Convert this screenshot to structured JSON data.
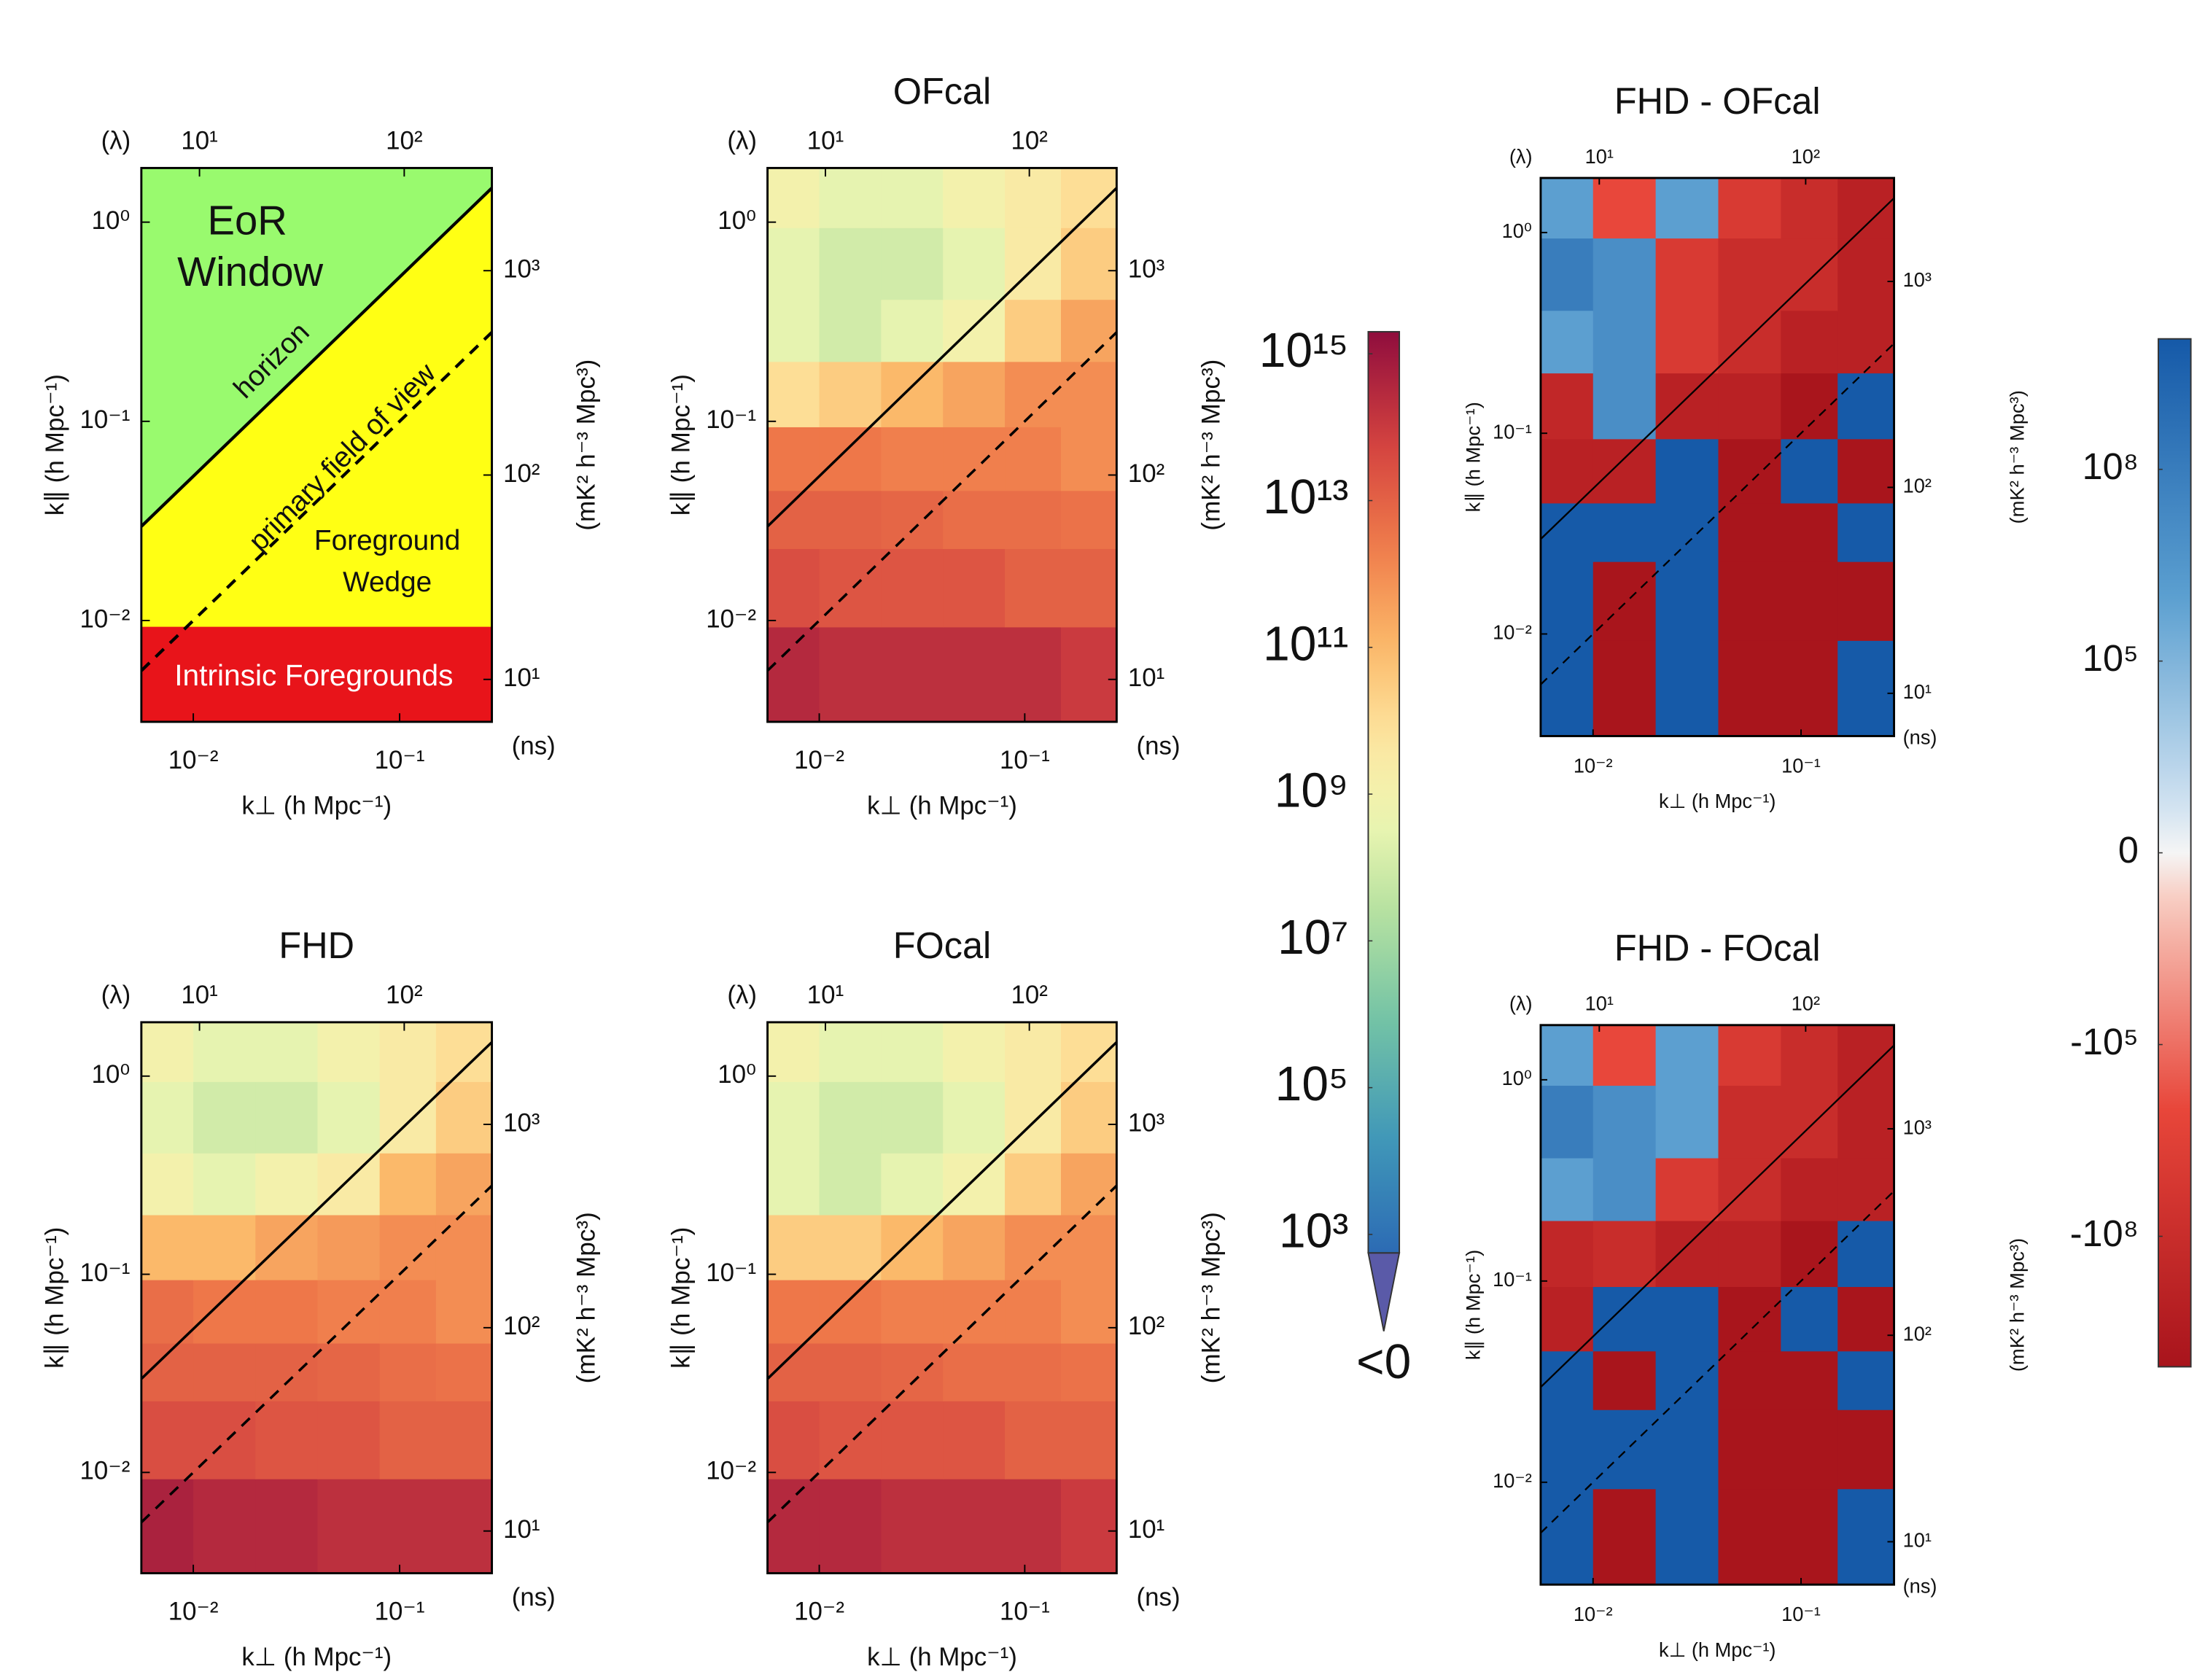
{
  "chart_data": [
    {
      "type": "schematic",
      "xlabel": "k⊥ (h Mpc⁻¹)",
      "ylabel": "k∥ (h Mpc⁻¹)",
      "x2label": "(λ)",
      "y2label": "(ns)",
      "zlabel": "(mK² h⁻³ Mpc³)",
      "xlim": [
        0.0056,
        0.28
      ],
      "ylim": [
        0.0031,
        1.87
      ],
      "x2lim": [
        5.2,
        268
      ],
      "y2lim": [
        6.2,
        3180
      ],
      "xticks": [
        {
          "value": 0.01,
          "label": "10⁻²"
        },
        {
          "value": 0.1,
          "label": "10⁻¹"
        }
      ],
      "x2ticks": [
        {
          "value": 10,
          "label": "10¹"
        },
        {
          "value": 100,
          "label": "10²"
        }
      ],
      "yticks": [
        {
          "value": 0.01,
          "label": "10⁻²"
        },
        {
          "value": 0.1,
          "label": "10⁻¹"
        },
        {
          "value": 1,
          "label": "10⁰"
        }
      ],
      "y2ticks": [
        {
          "value": 10,
          "label": "10¹"
        },
        {
          "value": 100,
          "label": "10²"
        },
        {
          "value": 1000,
          "label": "10³"
        }
      ],
      "horizon_slope": 5.3,
      "fov_slope": 1.0,
      "foreground_kpar": 0.0093,
      "colors": {
        "window": "#99fa6e",
        "wedge": "#ffff14",
        "foregrounds": "#e8141a"
      },
      "region_labels": {
        "window": [
          "EoR",
          "Window"
        ],
        "horizon": "horizon",
        "fov": "primary field of view",
        "wedge": [
          "Foreground",
          "Wedge"
        ],
        "foregrounds": "Intrinsic Foregrounds"
      }
    },
    {
      "type": "heatmap",
      "title": "OFcal",
      "colormap": "spectral",
      "xlabel": "k⊥ (h Mpc⁻¹)",
      "ylabel": "k∥ (h Mpc⁻¹)",
      "x2label": "(λ)",
      "y2label": "(ns)",
      "zlabel": "(mK² h⁻³ Mpc³)",
      "xlim": [
        0.0056,
        0.28
      ],
      "ylim": [
        0.0031,
        1.87
      ],
      "x2lim": [
        5.2,
        268
      ],
      "y2lim": [
        6.2,
        3180
      ],
      "xticks": [
        {
          "value": 0.01,
          "label": "10⁻²"
        },
        {
          "value": 0.1,
          "label": "10⁻¹"
        }
      ],
      "x2ticks": [
        {
          "value": 10,
          "label": "10¹"
        },
        {
          "value": 100,
          "label": "10²"
        }
      ],
      "yticks": [
        {
          "value": 0.01,
          "label": "10⁻²"
        },
        {
          "value": 0.1,
          "label": "10⁻¹"
        },
        {
          "value": 1,
          "label": "10⁰"
        }
      ],
      "y2ticks": [
        {
          "value": 10,
          "label": "10¹"
        },
        {
          "value": 100,
          "label": "10²"
        },
        {
          "value": 1000,
          "label": "10³"
        }
      ],
      "horizon_slope": 5.3,
      "fov_slope": 1.0,
      "x_edges": [
        0.0056,
        0.01,
        0.02,
        0.04,
        0.08,
        0.15,
        0.28
      ],
      "y_edges": [
        0.0031,
        0.0093,
        0.023,
        0.045,
        0.094,
        0.2,
        0.41,
        0.94,
        1.87
      ],
      "z": [
        [
          300000000000000.0,
          200000000000000.0,
          200000000000000.0,
          200000000000000.0,
          200000000000000.0,
          100000000000000.0
        ],
        [
          30000000000000.0,
          20000000000000.0,
          20000000000000.0,
          20000000000000.0,
          10000000000000.0,
          10000000000000.0
        ],
        [
          10000000000000.0,
          10000000000000.0,
          8000000000000.0,
          5000000000000.0,
          5000000000000.0,
          4000000000000.0
        ],
        [
          3000000000000.0,
          3000000000000.0,
          2000000000000.0,
          2000000000000.0,
          2000000000000.0,
          1000000000000.0
        ],
        [
          10000000000.0,
          30000000000.0,
          100000000000.0,
          300000000000.0,
          1000000000000.0,
          1000000000000.0
        ],
        [
          300000000.0,
          100000000.0,
          300000000.0,
          1000000000.0,
          30000000000.0,
          300000000000.0
        ],
        [
          300000000.0,
          100000000.0,
          100000000.0,
          300000000.0,
          3000000000.0,
          30000000000.0
        ],
        [
          1000000000.0,
          300000000.0,
          300000000.0,
          1000000000.0,
          3000000000.0,
          10000000000.0
        ]
      ]
    },
    {
      "type": "heatmap",
      "title": "FHD - OFcal",
      "colormap": "diverging",
      "xlabel": "k⊥ (h Mpc⁻¹)",
      "ylabel": "k∥ (h Mpc⁻¹)",
      "x2label": "(λ)",
      "y2label": "(ns)",
      "zlabel": "(mK² h⁻³ Mpc³)",
      "xlim": [
        0.0056,
        0.28
      ],
      "ylim": [
        0.0031,
        1.87
      ],
      "x2lim": [
        5.2,
        268
      ],
      "y2lim": [
        6.2,
        3180
      ],
      "xticks": [
        {
          "value": 0.01,
          "label": "10⁻²"
        },
        {
          "value": 0.1,
          "label": "10⁻¹"
        }
      ],
      "x2ticks": [
        {
          "value": 10,
          "label": "10¹"
        },
        {
          "value": 100,
          "label": "10²"
        }
      ],
      "yticks": [
        {
          "value": 0.01,
          "label": "10⁻²"
        },
        {
          "value": 0.1,
          "label": "10⁻¹"
        },
        {
          "value": 1,
          "label": "10⁰"
        }
      ],
      "y2ticks": [
        {
          "value": 10,
          "label": "10¹"
        },
        {
          "value": 100,
          "label": "10²"
        },
        {
          "value": 1000,
          "label": "10³"
        }
      ],
      "horizon_slope": 5.3,
      "fov_slope": 1.0,
      "x_edges": [
        0.0056,
        0.01,
        0.02,
        0.04,
        0.08,
        0.15,
        0.28
      ],
      "y_edges": [
        0.0031,
        0.0093,
        0.023,
        0.045,
        0.094,
        0.2,
        0.41,
        0.94,
        1.87
      ],
      "z": [
        [
          10000000000.0,
          -10000000000.0,
          10000000000.0,
          -10000000000.0,
          -10000000000.0,
          10000000000.0
        ],
        [
          10000000000.0,
          -10000000000.0,
          10000000000.0,
          -10000000000.0,
          -10000000000.0,
          -10000000000.0
        ],
        [
          10000000000.0,
          10000000000.0,
          10000000000.0,
          -10000000000.0,
          -10000000000.0,
          10000000000.0
        ],
        [
          -1000000000.0,
          -1000000000.0,
          10000000000.0,
          -10000000000.0,
          10000000000.0,
          -10000000000.0
        ],
        [
          -300000000.0,
          10000000.0,
          -1000000000.0,
          -1000000000.0,
          -10000000000.0,
          10000000000.0
        ],
        [
          1000000.0,
          10000000.0,
          -10000000.0,
          -100000000.0,
          -1000000000.0,
          -1000000000.0
        ],
        [
          100000000.0,
          10000000.0,
          -10000000.0,
          -100000000.0,
          -100000000.0,
          -1000000000.0
        ],
        [
          1000000.0,
          -1000000.0,
          1000000.0,
          -10000000.0,
          -100000000.0,
          -1000000000.0
        ]
      ]
    },
    {
      "type": "heatmap",
      "title": "FHD",
      "colormap": "spectral",
      "xlabel": "k⊥ (h Mpc⁻¹)",
      "ylabel": "k∥ (h Mpc⁻¹)",
      "x2label": "(λ)",
      "y2label": "(ns)",
      "zlabel": "(mK² h⁻³ Mpc³)",
      "xlim": [
        0.0056,
        0.28
      ],
      "ylim": [
        0.0031,
        1.87
      ],
      "x2lim": [
        5.2,
        268
      ],
      "y2lim": [
        6.2,
        3180
      ],
      "xticks": [
        {
          "value": 0.01,
          "label": "10⁻²"
        },
        {
          "value": 0.1,
          "label": "10⁻¹"
        }
      ],
      "x2ticks": [
        {
          "value": 10,
          "label": "10¹"
        },
        {
          "value": 100,
          "label": "10²"
        }
      ],
      "yticks": [
        {
          "value": 0.01,
          "label": "10⁻²"
        },
        {
          "value": 0.1,
          "label": "10⁻¹"
        },
        {
          "value": 1,
          "label": "10⁰"
        }
      ],
      "y2ticks": [
        {
          "value": 10,
          "label": "10¹"
        },
        {
          "value": 100,
          "label": "10²"
        },
        {
          "value": 1000,
          "label": "10³"
        }
      ],
      "horizon_slope": 5.3,
      "fov_slope": 1.0,
      "x_edges": [
        0.0056,
        0.01,
        0.02,
        0.04,
        0.08,
        0.15,
        0.28
      ],
      "y_edges": [
        0.0031,
        0.0093,
        0.023,
        0.045,
        0.094,
        0.2,
        0.41,
        0.94,
        1.87
      ],
      "z": [
        [
          500000000000000.0,
          300000000000000.0,
          300000000000000.0,
          200000000000000.0,
          200000000000000.0,
          200000000000000.0
        ],
        [
          30000000000000.0,
          30000000000000.0,
          20000000000000.0,
          20000000000000.0,
          10000000000000.0,
          10000000000000.0
        ],
        [
          10000000000000.0,
          10000000000000.0,
          10000000000000.0,
          8000000000000.0,
          5000000000000.0,
          4000000000000.0
        ],
        [
          5000000000000.0,
          3000000000000.0,
          3000000000000.0,
          2000000000000.0,
          2000000000000.0,
          1000000000000.0
        ],
        [
          100000000000.0,
          100000000000.0,
          300000000000.0,
          500000000000.0,
          1000000000000.0,
          1000000000000.0
        ],
        [
          1000000000.0,
          300000000.0,
          1000000000.0,
          3000000000.0,
          100000000000.0,
          300000000000.0
        ],
        [
          300000000.0,
          100000000.0,
          100000000.0,
          300000000.0,
          3000000000.0,
          30000000000.0
        ],
        [
          1000000000.0,
          300000000.0,
          300000000.0,
          1000000000.0,
          3000000000.0,
          10000000000.0
        ]
      ]
    },
    {
      "type": "heatmap",
      "title": "FOcal",
      "colormap": "spectral",
      "xlabel": "k⊥ (h Mpc⁻¹)",
      "ylabel": "k∥ (h Mpc⁻¹)",
      "x2label": "(λ)",
      "y2label": "(ns)",
      "zlabel": "(mK² h⁻³ Mpc³)",
      "xlim": [
        0.0056,
        0.28
      ],
      "ylim": [
        0.0031,
        1.87
      ],
      "x2lim": [
        5.2,
        268
      ],
      "y2lim": [
        6.2,
        3180
      ],
      "xticks": [
        {
          "value": 0.01,
          "label": "10⁻²"
        },
        {
          "value": 0.1,
          "label": "10⁻¹"
        }
      ],
      "x2ticks": [
        {
          "value": 10,
          "label": "10¹"
        },
        {
          "value": 100,
          "label": "10²"
        }
      ],
      "yticks": [
        {
          "value": 0.01,
          "label": "10⁻²"
        },
        {
          "value": 0.1,
          "label": "10⁻¹"
        },
        {
          "value": 1,
          "label": "10⁰"
        }
      ],
      "y2ticks": [
        {
          "value": 10,
          "label": "10¹"
        },
        {
          "value": 100,
          "label": "10²"
        },
        {
          "value": 1000,
          "label": "10³"
        }
      ],
      "horizon_slope": 5.3,
      "fov_slope": 1.0,
      "x_edges": [
        0.0056,
        0.01,
        0.02,
        0.04,
        0.08,
        0.15,
        0.28
      ],
      "y_edges": [
        0.0031,
        0.0093,
        0.023,
        0.045,
        0.094,
        0.2,
        0.41,
        0.94,
        1.87
      ],
      "z": [
        [
          300000000000000.0,
          300000000000000.0,
          200000000000000.0,
          200000000000000.0,
          200000000000000.0,
          100000000000000.0
        ],
        [
          30000000000000.0,
          20000000000000.0,
          20000000000000.0,
          20000000000000.0,
          10000000000000.0,
          10000000000000.0
        ],
        [
          10000000000000.0,
          10000000000000.0,
          8000000000000.0,
          5000000000000.0,
          5000000000000.0,
          4000000000000.0
        ],
        [
          3000000000000.0,
          3000000000000.0,
          2000000000000.0,
          2000000000000.0,
          2000000000000.0,
          1000000000000.0
        ],
        [
          30000000000.0,
          30000000000.0,
          100000000000.0,
          300000000000.0,
          1000000000000.0,
          1000000000000.0
        ],
        [
          300000000.0,
          100000000.0,
          300000000.0,
          1000000000.0,
          30000000000.0,
          300000000000.0
        ],
        [
          300000000.0,
          100000000.0,
          100000000.0,
          300000000.0,
          3000000000.0,
          30000000000.0
        ],
        [
          1000000000.0,
          300000000.0,
          300000000.0,
          1000000000.0,
          3000000000.0,
          10000000000.0
        ]
      ]
    },
    {
      "type": "heatmap",
      "title": "FHD - FOcal",
      "colormap": "diverging",
      "xlabel": "k⊥ (h Mpc⁻¹)",
      "ylabel": "k∥ (h Mpc⁻¹)",
      "x2label": "(λ)",
      "y2label": "(ns)",
      "zlabel": "(mK² h⁻³ Mpc³)",
      "xlim": [
        0.0056,
        0.28
      ],
      "ylim": [
        0.0031,
        1.87
      ],
      "x2lim": [
        5.2,
        268
      ],
      "y2lim": [
        6.2,
        3180
      ],
      "xticks": [
        {
          "value": 0.01,
          "label": "10⁻²"
        },
        {
          "value": 0.1,
          "label": "10⁻¹"
        }
      ],
      "x2ticks": [
        {
          "value": 10,
          "label": "10¹"
        },
        {
          "value": 100,
          "label": "10²"
        }
      ],
      "yticks": [
        {
          "value": 0.01,
          "label": "10⁻²"
        },
        {
          "value": 0.1,
          "label": "10⁻¹"
        },
        {
          "value": 1,
          "label": "10⁰"
        }
      ],
      "y2ticks": [
        {
          "value": 10,
          "label": "10¹"
        },
        {
          "value": 100,
          "label": "10²"
        },
        {
          "value": 1000,
          "label": "10³"
        }
      ],
      "horizon_slope": 5.3,
      "fov_slope": 1.0,
      "x_edges": [
        0.0056,
        0.01,
        0.02,
        0.04,
        0.08,
        0.15,
        0.28
      ],
      "y_edges": [
        0.0031,
        0.0093,
        0.023,
        0.045,
        0.094,
        0.2,
        0.41,
        0.94,
        1.87
      ],
      "z": [
        [
          10000000000.0,
          -10000000000.0,
          10000000000.0,
          -10000000000.0,
          -10000000000.0,
          10000000000.0
        ],
        [
          10000000000.0,
          10000000000.0,
          10000000000.0,
          -10000000000.0,
          -10000000000.0,
          -10000000000.0
        ],
        [
          10000000000.0,
          -10000000000.0,
          10000000000.0,
          -10000000000.0,
          -10000000000.0,
          10000000000.0
        ],
        [
          -1000000000.0,
          10000000000.0,
          10000000000.0,
          -10000000000.0,
          10000000000.0,
          -10000000000.0
        ],
        [
          -300000000.0,
          -100000000.0,
          -1000000000.0,
          -1000000000.0,
          -10000000000.0,
          10000000000.0
        ],
        [
          1000000.0,
          10000000.0,
          -10000000.0,
          -100000000.0,
          -1000000000.0,
          -1000000000.0
        ],
        [
          100000000.0,
          10000000.0,
          1000000.0,
          -100000000.0,
          -100000000.0,
          -1000000000.0
        ],
        [
          1000000.0,
          -1000000.0,
          1000000.0,
          -10000000.0,
          -100000000.0,
          -1000000000.0
        ]
      ]
    },
    {
      "type": "colorbar",
      "colormap": "spectral",
      "clim": [
        560,
        2000000000000000.0
      ],
      "ticks": [
        {
          "value": 1000000000000000.0,
          "label": "10¹⁵"
        },
        {
          "value": 10000000000000.0,
          "label": "10¹³"
        },
        {
          "value": 100000000000.0,
          "label": "10¹¹"
        },
        {
          "value": 1000000000.0,
          "label": "10⁹"
        },
        {
          "value": 10000000.0,
          "label": "10⁷"
        },
        {
          "value": 100000.0,
          "label": "10⁵"
        },
        {
          "value": 1000.0,
          "label": "10³"
        }
      ],
      "under_label": "<0",
      "under_color": "#5a5aa8"
    },
    {
      "type": "colorbar",
      "colormap": "diverging",
      "clim": [
        -11000000000.0,
        11000000000.0
      ],
      "linthresh": 100,
      "ticks": [
        {
          "value": 100000000.0,
          "label": "10⁸"
        },
        {
          "value": 100000.0,
          "label": "10⁵"
        },
        0,
        {
          "value": -100000.0,
          "label": "-10⁵"
        },
        {
          "value": -100000000.0,
          "label": "-10⁸"
        }
      ]
    }
  ]
}
